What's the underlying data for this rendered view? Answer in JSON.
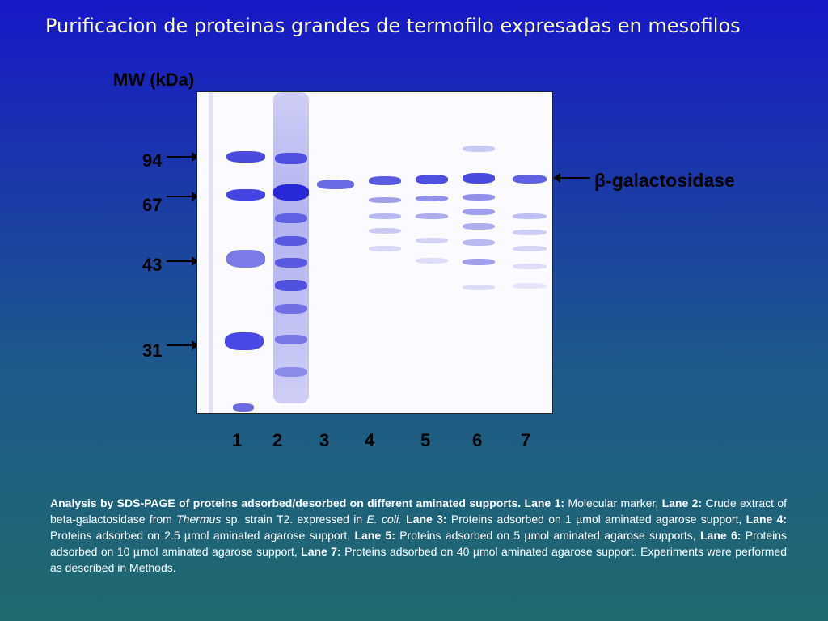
{
  "title": "Purificacion de proteinas grandes de termofilo expresadas en mesofilos",
  "mw_axis_label": "MW (kDa)",
  "markers": [
    "94",
    "67",
    "43",
    "31"
  ],
  "band_label": "β-galactosidase",
  "lanes": [
    "1",
    "2",
    "3",
    "4",
    "5",
    "6",
    "7"
  ],
  "caption": {
    "intro": "Analysis by SDS-PAGE of proteins adsorbed/desorbed on different aminated supports.",
    "l1_label": "Lane 1:",
    "l1_text": "Molecular marker,",
    "l2_label": "Lane 2:",
    "l2_text_a": "Crude extract of beta-galactosidase from",
    "l2_species": "Thermus",
    "l2_text_b": "sp. strain T2. expressed in",
    "l2_host": "E. coli.",
    "l3_label": "Lane 3:",
    "l3_text": "Proteins adsorbed on 1 µmol aminated agarose support,",
    "l4_label": "Lane 4:",
    "l4_text": "Proteins adsorbed on 2.5 µmol aminated agarose support,",
    "l5_label": "Lane 5:",
    "l5_text": "Proteins adsorbed on 5 µmol aminated agarose supports,",
    "l6_label": "Lane 6:",
    "l6_text": "Proteins adsorbed on 10 µmol aminated agarose support,",
    "l7_label": "Lane 7:",
    "l7_text": "Proteins adsorbed on 40 µmol aminated agarose support. Experiments were performed as described in Methods."
  }
}
